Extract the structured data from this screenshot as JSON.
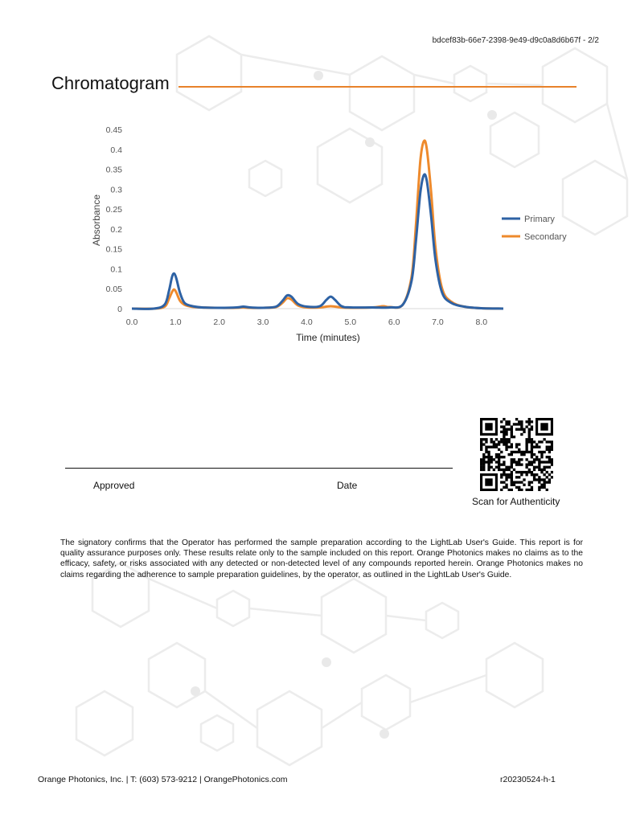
{
  "header": {
    "doc_id": "bdcef83b-66e7-2398-9e49-d9c0a8d6b67f - 2/2"
  },
  "section": {
    "title": "Chromatogram"
  },
  "colors": {
    "accent": "#e8822a",
    "primary_series": "#2e62a4",
    "secondary_series": "#ee8a2c"
  },
  "chart_data": {
    "type": "line",
    "title": "",
    "xlabel": "Time (minutes)",
    "ylabel": "Absorbance",
    "xlim": [
      0,
      8.5
    ],
    "ylim": [
      0,
      0.45
    ],
    "x_ticks": [
      "0.0",
      "1.0",
      "2.0",
      "3.0",
      "4.0",
      "5.0",
      "6.0",
      "7.0",
      "8.0"
    ],
    "y_ticks": [
      "0.45",
      "0.4",
      "0.35",
      "0.3",
      "0.25",
      "0.2",
      "0.15",
      "0.1",
      "0.05",
      "0"
    ],
    "grid": false,
    "legend_position": "right",
    "series": [
      {
        "name": "Primary",
        "color": "#2e62a4",
        "x": [
          0.0,
          0.5,
          0.75,
          0.85,
          0.92,
          0.97,
          1.02,
          1.1,
          1.2,
          1.35,
          1.6,
          2.0,
          2.4,
          2.55,
          2.7,
          3.0,
          3.3,
          3.45,
          3.55,
          3.65,
          3.8,
          4.0,
          4.3,
          4.45,
          4.55,
          4.65,
          4.8,
          5.0,
          5.5,
          5.9,
          6.2,
          6.4,
          6.5,
          6.6,
          6.68,
          6.75,
          6.85,
          6.95,
          7.1,
          7.3,
          7.6,
          8.0,
          8.5
        ],
        "y": [
          0.0,
          0.0,
          0.01,
          0.045,
          0.08,
          0.088,
          0.075,
          0.04,
          0.015,
          0.007,
          0.003,
          0.002,
          0.003,
          0.005,
          0.003,
          0.002,
          0.005,
          0.02,
          0.033,
          0.03,
          0.012,
          0.005,
          0.006,
          0.022,
          0.03,
          0.022,
          0.006,
          0.003,
          0.003,
          0.003,
          0.01,
          0.07,
          0.17,
          0.29,
          0.335,
          0.32,
          0.23,
          0.12,
          0.04,
          0.015,
          0.005,
          0.001,
          0.0
        ]
      },
      {
        "name": "Secondary",
        "color": "#ee8a2c",
        "x": [
          0.0,
          0.5,
          0.75,
          0.85,
          0.92,
          0.97,
          1.02,
          1.1,
          1.2,
          1.35,
          1.6,
          2.0,
          2.4,
          2.55,
          2.7,
          3.0,
          3.3,
          3.45,
          3.55,
          3.65,
          3.8,
          4.0,
          4.3,
          4.45,
          4.55,
          4.65,
          4.8,
          5.0,
          5.5,
          5.75,
          5.9,
          6.2,
          6.4,
          6.5,
          6.6,
          6.68,
          6.75,
          6.85,
          6.95,
          7.1,
          7.3,
          7.6,
          8.0,
          8.5
        ],
        "y": [
          0.0,
          0.0,
          0.005,
          0.025,
          0.042,
          0.048,
          0.04,
          0.02,
          0.01,
          0.005,
          0.003,
          0.002,
          0.002,
          0.003,
          0.002,
          0.002,
          0.004,
          0.015,
          0.026,
          0.023,
          0.008,
          0.003,
          0.003,
          0.005,
          0.006,
          0.005,
          0.003,
          0.002,
          0.003,
          0.006,
          0.004,
          0.01,
          0.08,
          0.21,
          0.37,
          0.42,
          0.4,
          0.29,
          0.15,
          0.05,
          0.018,
          0.005,
          0.001,
          0.0
        ]
      }
    ]
  },
  "signature": {
    "approved_label": "Approved",
    "date_label": "Date"
  },
  "qr": {
    "caption": "Scan for Authenticity"
  },
  "disclaimer": {
    "text": "The signatory confirms that the Operator has performed the sample preparation according to the LightLab User's Guide. This report is for quality assurance purposes only. These results relate only to the sample included on this report. Orange Photonics makes no claims as to the efficacy, safety, or risks associated with any detected or non-detected level of any compounds reported herein. Orange Photonics makes no claims regarding the adherence to sample preparation guidelines, by the operator, as outlined in the LightLab User's Guide."
  },
  "footer": {
    "contact": "Orange Photonics, Inc. | T: (603) 573-9212 | OrangePhotonics.com",
    "revision": "r20230524-h-1"
  }
}
